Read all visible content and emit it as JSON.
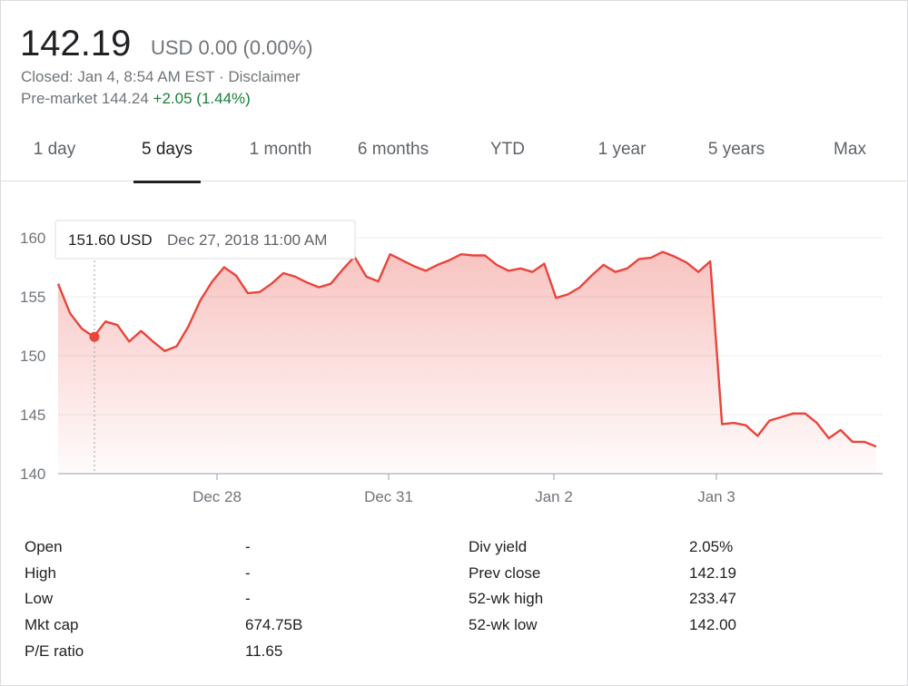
{
  "quote": {
    "price": "142.19",
    "currency_change": "USD 0.00 (0.00%)",
    "closed_text": "Closed: Jan 4, 8:54 AM EST",
    "disclaimer": "Disclaimer",
    "premarket_label": "Pre-market",
    "premarket_price": "144.24",
    "premarket_change": "+2.05 (1.44%)",
    "colors": {
      "negative": "#e8453c",
      "positive": "#188038"
    }
  },
  "tabs": [
    {
      "label": "1 day"
    },
    {
      "label": "5 days",
      "active": true
    },
    {
      "label": "1 month"
    },
    {
      "label": "6 months"
    },
    {
      "label": "YTD"
    },
    {
      "label": "1 year"
    },
    {
      "label": "5 years"
    },
    {
      "label": "Max"
    }
  ],
  "tooltip": {
    "price": "151.60 USD",
    "datetime": "Dec 27, 2018 11:00 AM"
  },
  "chart_data": {
    "type": "area",
    "title": "",
    "xlabel": "",
    "ylabel": "",
    "x_ticks": [
      "Dec 28",
      "Dec 31",
      "Jan 2",
      "Jan 3"
    ],
    "y_ticks": [
      140,
      145,
      150,
      155,
      160
    ],
    "ylim": [
      140,
      161
    ],
    "grid": true,
    "series": [
      {
        "values": [
          156.1,
          153.6,
          152.3,
          151.6,
          152.9,
          152.6,
          151.2,
          152.1,
          151.2,
          150.4,
          150.8,
          152.5,
          154.7,
          156.3,
          157.5,
          156.8,
          155.3,
          155.4,
          156.1,
          157.0,
          156.7,
          156.2,
          155.8,
          156.1,
          157.3,
          158.4,
          156.7,
          156.3,
          158.6,
          158.1,
          157.6,
          157.2,
          157.7,
          158.1,
          158.6,
          158.5,
          158.5,
          157.7,
          157.2,
          157.4,
          157.1,
          157.8,
          154.9,
          155.2,
          155.8,
          156.8,
          157.7,
          157.1,
          157.4,
          158.2,
          158.3,
          158.8,
          158.4,
          157.9,
          157.1,
          158.0,
          144.2,
          144.3,
          144.1,
          143.2,
          144.5,
          144.8,
          145.1,
          145.1,
          144.3,
          143.0,
          143.7,
          142.7,
          142.7,
          142.3
        ],
        "color": "#e8453c"
      }
    ]
  },
  "stats": {
    "left": [
      {
        "label": "Open",
        "value": "-"
      },
      {
        "label": "High",
        "value": "-"
      },
      {
        "label": "Low",
        "value": "-"
      },
      {
        "label": "Mkt cap",
        "value": "674.75B"
      },
      {
        "label": "P/E ratio",
        "value": "11.65"
      }
    ],
    "right": [
      {
        "label": "Div yield",
        "value": "2.05%"
      },
      {
        "label": "Prev close",
        "value": "142.19"
      },
      {
        "label": "52-wk high",
        "value": "233.47"
      },
      {
        "label": "52-wk low",
        "value": "142.00"
      }
    ]
  }
}
